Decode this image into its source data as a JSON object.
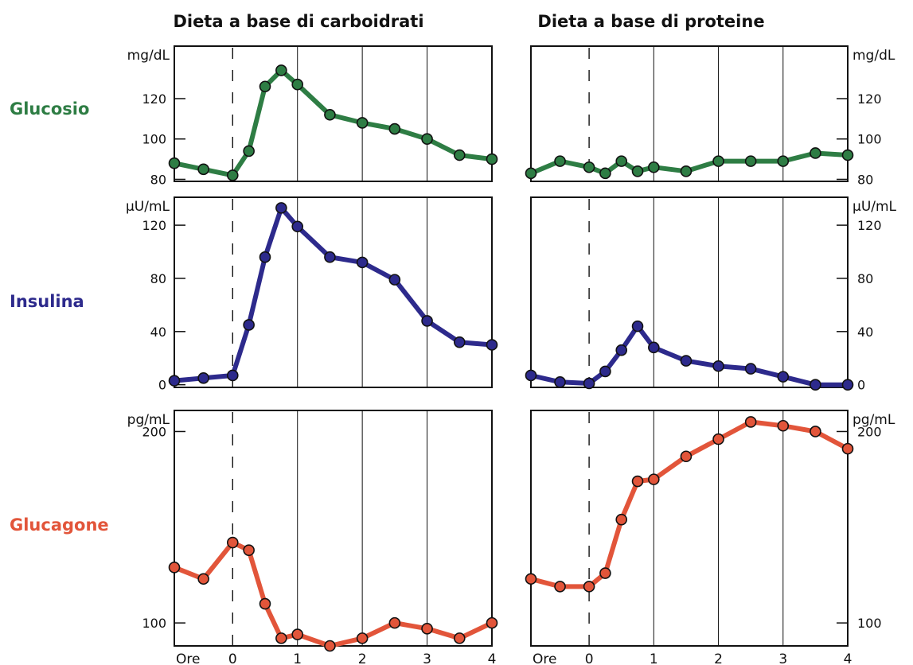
{
  "columns": [
    "Dieta a base di carboidrati",
    "Dieta a base di proteine"
  ],
  "rows": [
    {
      "label": "Glucosio",
      "color": "#2e7d44"
    },
    {
      "label": "Insulina",
      "color": "#2d2a8c"
    },
    {
      "label": "Glucagone",
      "color": "#e2553a"
    }
  ],
  "x_axis": {
    "label": "Ore",
    "ticks": [
      "0",
      "1",
      "2",
      "3",
      "4"
    ]
  },
  "chart_data": [
    {
      "type": "line",
      "row": "Glucosio",
      "column": "Dieta a base di carboidrati",
      "unit": "mg/dL",
      "yticks": [
        80,
        100,
        120
      ],
      "ylim": [
        79,
        146
      ],
      "xlim": [
        -0.9,
        4
      ],
      "color": "#2e7d44",
      "x": [
        -0.9,
        -0.45,
        0,
        0.25,
        0.5,
        0.75,
        1,
        1.5,
        2,
        2.5,
        3,
        3.5,
        4
      ],
      "values": [
        88,
        85,
        82,
        94,
        126,
        134,
        127,
        112,
        108,
        105,
        100,
        92,
        90
      ]
    },
    {
      "type": "line",
      "row": "Glucosio",
      "column": "Dieta a base di proteine",
      "unit": "mg/dL",
      "yticks": [
        80,
        100,
        120
      ],
      "ylim": [
        79,
        146
      ],
      "xlim": [
        -0.9,
        4
      ],
      "color": "#2e7d44",
      "x": [
        -0.9,
        -0.45,
        0,
        0.25,
        0.5,
        0.75,
        1,
        1.5,
        2,
        2.5,
        3,
        3.5,
        4
      ],
      "values": [
        83,
        89,
        86,
        83,
        89,
        84,
        86,
        84,
        89,
        89,
        89,
        93,
        92
      ]
    },
    {
      "type": "line",
      "row": "Insulina",
      "column": "Dieta a base di carboidrati",
      "unit": "µU/mL",
      "yticks": [
        0,
        40,
        80,
        120
      ],
      "ylim": [
        -2,
        141
      ],
      "xlim": [
        -0.9,
        4
      ],
      "color": "#2d2a8c",
      "x": [
        -0.9,
        -0.45,
        0,
        0.25,
        0.5,
        0.75,
        1,
        1.5,
        2,
        2.5,
        3,
        3.5,
        4
      ],
      "values": [
        3,
        5,
        7,
        45,
        96,
        133,
        119,
        96,
        92,
        79,
        48,
        32,
        30
      ]
    },
    {
      "type": "line",
      "row": "Insulina",
      "column": "Dieta a base di proteine",
      "unit": "µU/mL",
      "yticks": [
        0,
        40,
        80,
        120
      ],
      "ylim": [
        -2,
        141
      ],
      "xlim": [
        -0.9,
        4
      ],
      "color": "#2d2a8c",
      "x": [
        -0.9,
        -0.45,
        0,
        0.25,
        0.5,
        0.75,
        1,
        1.5,
        2,
        2.5,
        3,
        3.5,
        4
      ],
      "values": [
        7,
        2,
        1,
        10,
        26,
        44,
        28,
        18,
        14,
        12,
        6,
        0,
        0
      ]
    },
    {
      "type": "line",
      "row": "Glucagone",
      "column": "Dieta a base di carboidrati",
      "unit": "pg/mL",
      "yticks": [
        100,
        200
      ],
      "ylim": [
        88,
        211
      ],
      "xlim": [
        -0.9,
        4
      ],
      "color": "#e2553a",
      "x": [
        -0.9,
        -0.45,
        0,
        0.25,
        0.5,
        0.75,
        1,
        1.5,
        2,
        2.5,
        3,
        3.5,
        4
      ],
      "values": [
        129,
        123,
        142,
        138,
        110,
        92,
        94,
        88,
        92,
        100,
        97,
        92,
        100
      ]
    },
    {
      "type": "line",
      "row": "Glucagone",
      "column": "Dieta a base di proteine",
      "unit": "pg/mL",
      "yticks": [
        100,
        200
      ],
      "ylim": [
        88,
        211
      ],
      "xlim": [
        -0.9,
        4
      ],
      "color": "#e2553a",
      "x": [
        -0.9,
        -0.45,
        0,
        0.25,
        0.5,
        0.75,
        1,
        1.5,
        2,
        2.5,
        3,
        3.5,
        4
      ],
      "values": [
        123,
        119,
        119,
        126,
        154,
        174,
        175,
        187,
        196,
        205,
        203,
        200,
        191
      ]
    }
  ]
}
